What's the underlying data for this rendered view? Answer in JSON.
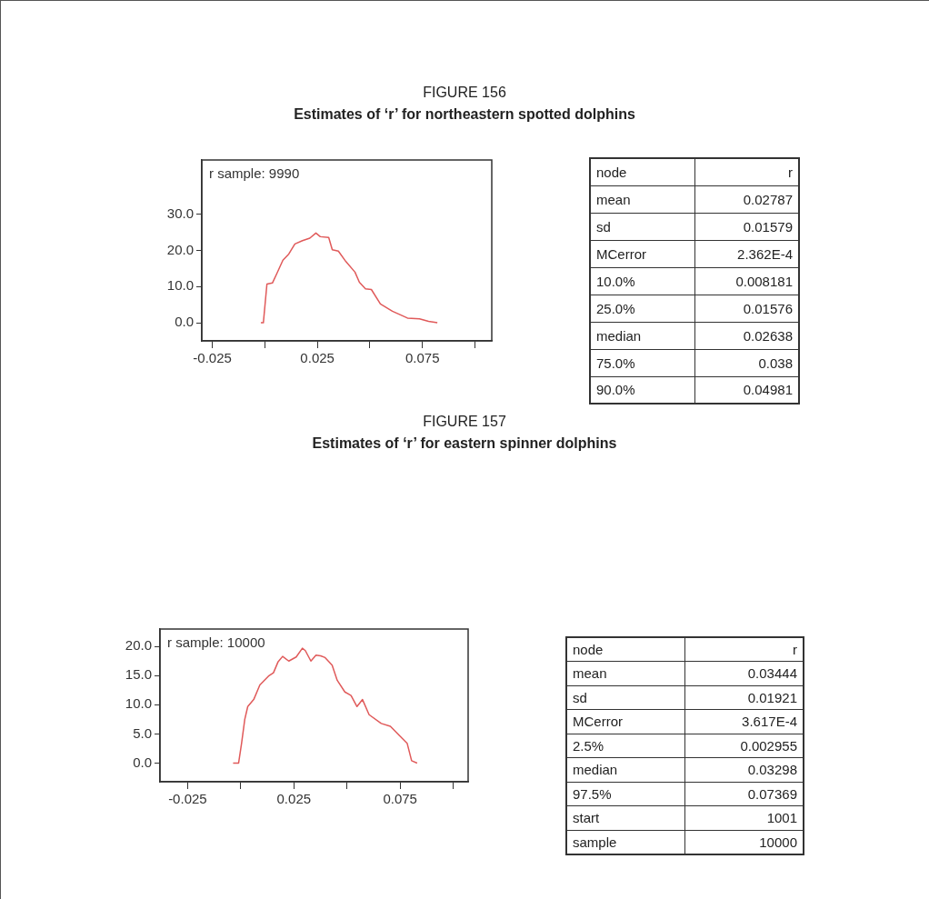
{
  "chart_data": [
    {
      "type": "line",
      "title": "FIGURE 156",
      "subtitle": "Estimates of ‘r’ for northeastern spotted dolphins",
      "annotations": [
        "r sample: 9990"
      ],
      "marker": "none",
      "line_style": "solid",
      "grid": false,
      "xlim": [
        -0.03,
        0.108
      ],
      "xticks": [
        {
          "value": -0.025,
          "label": "-0.025"
        },
        {
          "value": 0,
          "label": null
        },
        {
          "value": 0.025,
          "label": "0.025"
        },
        {
          "value": 0.05,
          "label": null
        },
        {
          "value": 0.075,
          "label": "0.075"
        },
        {
          "value": 0.1,
          "label": null
        }
      ],
      "ylim": [
        -5,
        45
      ],
      "yticks": [
        {
          "value": 0,
          "label": "0.0"
        },
        {
          "value": 10,
          "label": "10.0"
        },
        {
          "value": 20,
          "label": "20.0"
        },
        {
          "value": 30,
          "label": "30.0"
        }
      ],
      "series": [
        {
          "color": "#e05a5a",
          "x": [
            -0.0019,
            -0.0007,
            0.001,
            0.0036,
            0.0057,
            0.0086,
            0.0114,
            0.0143,
            0.0179,
            0.0214,
            0.0243,
            0.0264,
            0.0304,
            0.0321,
            0.035,
            0.0386,
            0.0429,
            0.045,
            0.0479,
            0.0507,
            0.055,
            0.0607,
            0.0679,
            0.0736,
            0.0779,
            0.0821
          ],
          "values": [
            0,
            0,
            10.7,
            11,
            13.6,
            17.3,
            19,
            21.8,
            22.7,
            23.4,
            24.8,
            23.8,
            23.6,
            20.2,
            19.8,
            16.9,
            14,
            11.2,
            9.4,
            9.2,
            5.2,
            3.2,
            1.3,
            1.1,
            0.4,
            0
          ]
        }
      ]
    },
    {
      "type": "other",
      "categories": [
        "node",
        "mean",
        "sd",
        "MCerror",
        "10.0%",
        "25.0%",
        "median",
        "75.0%",
        "90.0%"
      ],
      "value_labels": [
        "r",
        "0.02787",
        "0.01579",
        "2.362E-4",
        "0.008181",
        "0.01576",
        "0.02638",
        "0.038",
        "0.04981"
      ]
    },
    {
      "type": "line",
      "title": "FIGURE 157",
      "subtitle": "Estimates of ‘r’ for eastern spinner dolphins",
      "annotations": [
        "r sample: 10000"
      ],
      "marker": "none",
      "line_style": "solid",
      "grid": false,
      "xlim": [
        -0.038,
        0.107
      ],
      "xticks": [
        {
          "value": -0.025,
          "label": "-0.025"
        },
        {
          "value": 0,
          "label": null
        },
        {
          "value": 0.025,
          "label": "0.025"
        },
        {
          "value": 0.05,
          "label": null
        },
        {
          "value": 0.075,
          "label": "0.075"
        },
        {
          "value": 0.1,
          "label": null
        }
      ],
      "ylim": [
        -3.2,
        23
      ],
      "yticks": [
        {
          "value": 0,
          "label": "0.0"
        },
        {
          "value": 5,
          "label": "5.0"
        },
        {
          "value": 10,
          "label": "10.0"
        },
        {
          "value": 15,
          "label": "15.0"
        },
        {
          "value": 20,
          "label": "20.0"
        }
      ],
      "series": [
        {
          "color": "#e05a5a",
          "x": [
            -0.0036,
            -0.001,
            0.0004,
            0.0019,
            0.0033,
            0.0061,
            0.009,
            0.0133,
            0.0154,
            0.0176,
            0.0197,
            0.0226,
            0.0261,
            0.029,
            0.0304,
            0.033,
            0.0354,
            0.0376,
            0.0397,
            0.043,
            0.0454,
            0.049,
            0.0519,
            0.0547,
            0.0573,
            0.0604,
            0.0661,
            0.0704,
            0.0747,
            0.0783,
            0.0804,
            0.083
          ],
          "values": [
            0,
            0,
            3.4,
            7.5,
            9.7,
            10.9,
            13.4,
            15,
            15.5,
            17.4,
            18.3,
            17.5,
            18.2,
            19.7,
            19.3,
            17.5,
            18.5,
            18.4,
            18.1,
            16.8,
            14.2,
            12.2,
            11.6,
            9.7,
            10.9,
            8.3,
            6.8,
            6.3,
            4.7,
            3.4,
            0.4,
            0
          ]
        }
      ]
    },
    {
      "type": "other",
      "categories": [
        "node",
        "mean",
        "sd",
        "MCerror",
        "2.5%",
        "median",
        "97.5%",
        "start",
        "sample"
      ],
      "value_labels": [
        "r",
        "0.03444",
        "0.01921",
        "3.617E-4",
        "0.002955",
        "0.03298",
        "0.07369",
        "1001",
        "10000"
      ]
    }
  ]
}
